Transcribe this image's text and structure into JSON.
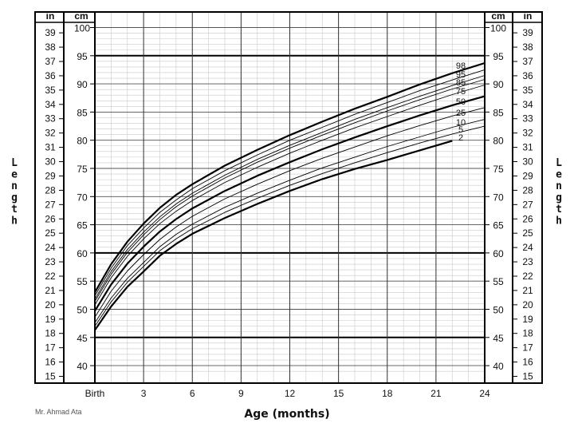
{
  "chart_data": {
    "type": "line",
    "xlabel": "Age (months)",
    "ylabel": "Length",
    "ylabel_left_unit": "cm",
    "ylabel_inch_unit": "in",
    "credit": "Mr. Ahmad Ata",
    "xlim": [
      0,
      24
    ],
    "ylim_cm": [
      38.1,
      101.6
    ],
    "ylim_in": [
      15,
      40
    ],
    "x_ticks": [
      {
        "value": 0,
        "label": "Birth"
      },
      {
        "value": 3,
        "label": "3"
      },
      {
        "value": 6,
        "label": "6"
      },
      {
        "value": 9,
        "label": "9"
      },
      {
        "value": 12,
        "label": "12"
      },
      {
        "value": 15,
        "label": "15"
      },
      {
        "value": 18,
        "label": "18"
      },
      {
        "value": 21,
        "label": "21"
      },
      {
        "value": 24,
        "label": "24"
      }
    ],
    "cm_ticks": [
      40,
      45,
      50,
      55,
      60,
      65,
      70,
      75,
      80,
      85,
      90,
      95,
      100
    ],
    "in_ticks": [
      15,
      16,
      17,
      18,
      19,
      20,
      21,
      22,
      23,
      24,
      25,
      26,
      27,
      28,
      29,
      30,
      31,
      32,
      33,
      34,
      35,
      36,
      37,
      38,
      39
    ],
    "grid": true,
    "x": [
      0,
      1,
      2,
      3,
      4,
      5,
      6,
      8,
      10,
      12,
      14,
      16,
      18,
      20,
      22,
      24
    ],
    "series": [
      {
        "name": "2",
        "values": [
          46.3,
          50.5,
          54.0,
          56.7,
          59.5,
          61.6,
          63.4,
          66.2,
          68.7,
          71.0,
          73.1,
          74.9,
          76.5,
          78.2,
          79.9,
          null
        ],
        "bold": true
      },
      {
        "name": "5",
        "values": [
          47.0,
          51.3,
          54.8,
          57.6,
          60.4,
          62.5,
          64.3,
          67.2,
          69.7,
          72.0,
          74.1,
          76.0,
          77.8,
          79.5,
          81.1,
          82.5
        ],
        "bold": false
      },
      {
        "name": "10",
        "values": [
          47.6,
          52.0,
          55.5,
          58.3,
          61.1,
          63.3,
          65.1,
          68.1,
          70.6,
          72.9,
          75.1,
          77.0,
          78.9,
          80.6,
          82.3,
          83.7
        ],
        "bold": false
      },
      {
        "name": "25",
        "values": [
          48.6,
          53.2,
          56.8,
          59.7,
          62.4,
          64.6,
          66.5,
          69.6,
          72.2,
          74.6,
          76.8,
          78.8,
          80.8,
          82.6,
          84.3,
          85.8
        ],
        "bold": false
      },
      {
        "name": "50",
        "values": [
          49.7,
          54.4,
          58.1,
          61.1,
          63.8,
          66.0,
          67.9,
          71.0,
          73.7,
          76.1,
          78.4,
          80.5,
          82.5,
          84.4,
          86.2,
          87.8
        ],
        "bold": true
      },
      {
        "name": "75",
        "values": [
          50.8,
          55.6,
          59.4,
          62.5,
          65.2,
          67.4,
          69.3,
          72.5,
          75.2,
          77.7,
          80.0,
          82.2,
          84.2,
          86.2,
          88.1,
          89.8
        ],
        "bold": false
      },
      {
        "name": "85",
        "values": [
          51.4,
          56.2,
          60.1,
          63.2,
          65.9,
          68.2,
          70.1,
          73.3,
          76.1,
          78.6,
          80.9,
          83.1,
          85.2,
          87.2,
          89.1,
          90.8
        ],
        "bold": false
      },
      {
        "name": "90",
        "values": [
          51.8,
          56.7,
          60.6,
          63.7,
          66.4,
          68.7,
          70.6,
          73.8,
          76.6,
          79.1,
          81.4,
          83.7,
          85.8,
          87.8,
          89.7,
          91.5
        ],
        "bold": false
      },
      {
        "name": "95",
        "values": [
          52.4,
          57.3,
          61.3,
          64.4,
          67.2,
          69.4,
          71.4,
          74.6,
          77.4,
          80.0,
          82.3,
          84.6,
          86.7,
          88.8,
          90.7,
          92.5
        ],
        "bold": false
      },
      {
        "name": "98",
        "values": [
          53.0,
          58.0,
          62.0,
          65.2,
          68.0,
          70.3,
          72.2,
          75.5,
          78.3,
          80.9,
          83.3,
          85.6,
          87.7,
          89.9,
          91.9,
          93.7
        ],
        "bold": true
      }
    ],
    "label_order": [
      "98",
      "95",
      "85",
      "75",
      "50",
      "25",
      "10",
      "5",
      "2"
    ]
  }
}
